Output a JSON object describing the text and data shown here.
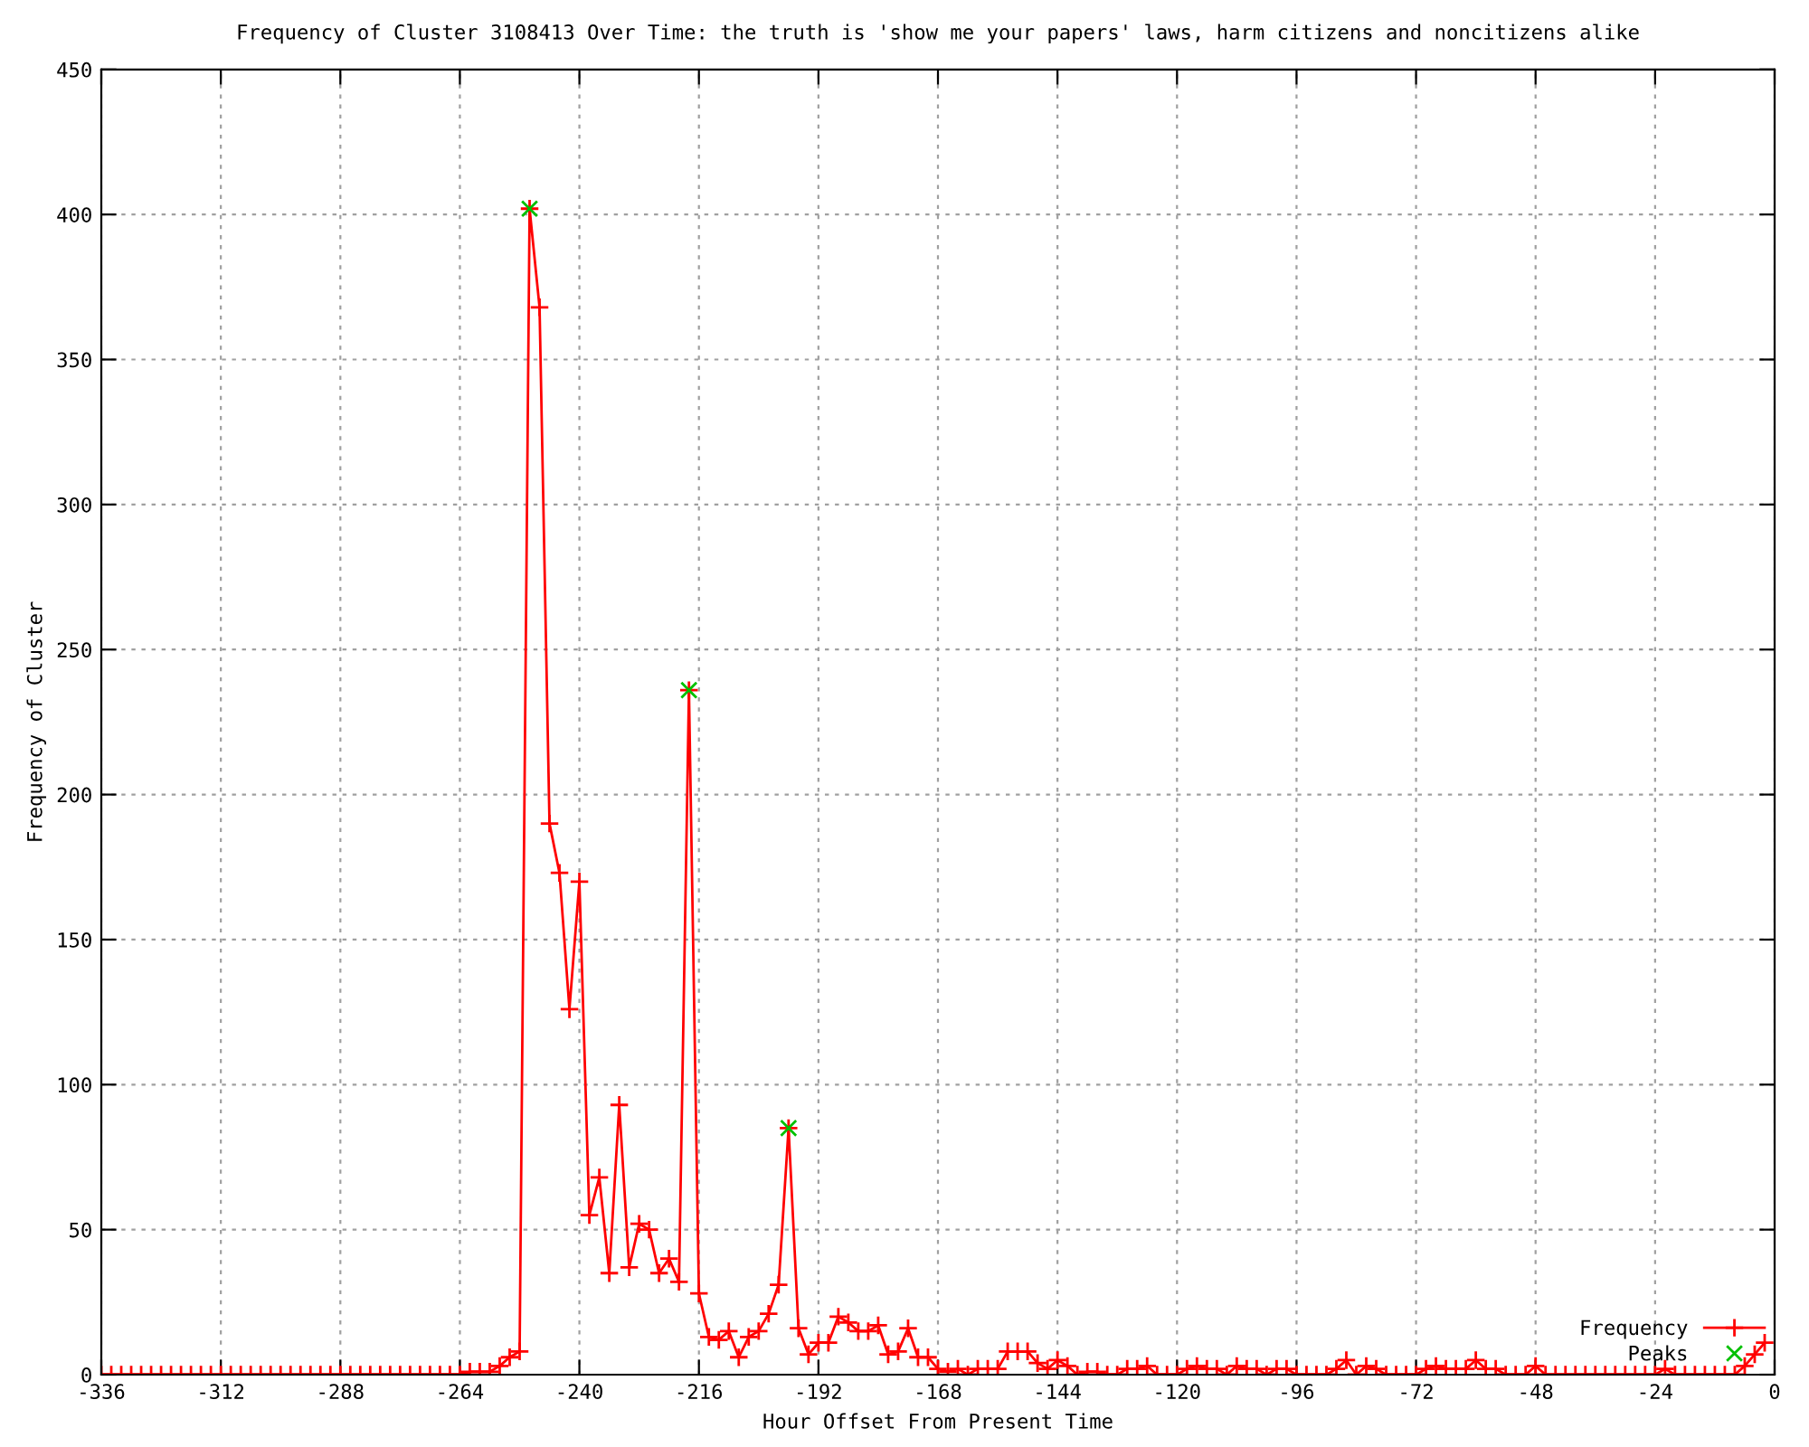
{
  "chart_data": {
    "type": "line",
    "title": "Frequency of Cluster 3108413 Over Time: the truth is 'show me your papers' laws, harm citizens and noncitizens alike",
    "xlabel": "Hour Offset From Present Time",
    "ylabel": "Frequency of Cluster",
    "xlim": [
      -336,
      0
    ],
    "ylim": [
      0,
      450
    ],
    "xticks": [
      -336,
      -312,
      -288,
      -264,
      -240,
      -216,
      -192,
      -168,
      -144,
      -120,
      -96,
      -72,
      -48,
      -24,
      0
    ],
    "yticks": [
      0,
      50,
      100,
      150,
      200,
      250,
      300,
      350,
      400,
      450
    ],
    "grid": true,
    "legend": "bottom right",
    "line_style": "solid",
    "series": [
      {
        "name": "Frequency",
        "color": "#ff0000",
        "marker": "cross",
        "x": [
          -336,
          -334,
          -332,
          -330,
          -328,
          -326,
          -324,
          -322,
          -320,
          -318,
          -316,
          -314,
          -312,
          -310,
          -308,
          -306,
          -304,
          -302,
          -300,
          -298,
          -296,
          -294,
          -292,
          -290,
          -288,
          -286,
          -284,
          -282,
          -280,
          -278,
          -276,
          -274,
          -272,
          -270,
          -268,
          -266,
          -264,
          -262,
          -260,
          -258,
          -256,
          -254,
          -252,
          -250,
          -248,
          -246,
          -244,
          -242,
          -240,
          -238,
          -236,
          -234,
          -232,
          -230,
          -228,
          -226,
          -224,
          -222,
          -220,
          -218,
          -216,
          -214,
          -212,
          -210,
          -208,
          -206,
          -204,
          -202,
          -200,
          -198,
          -196,
          -194,
          -192,
          -190,
          -188,
          -186,
          -184,
          -182,
          -180,
          -178,
          -176,
          -174,
          -172,
          -170,
          -168,
          -166,
          -164,
          -162,
          -160,
          -158,
          -156,
          -154,
          -152,
          -150,
          -148,
          -146,
          -144,
          -142,
          -140,
          -138,
          -136,
          -134,
          -132,
          -130,
          -128,
          -126,
          -124,
          -122,
          -120,
          -118,
          -116,
          -114,
          -112,
          -110,
          -108,
          -106,
          -104,
          -102,
          -100,
          -98,
          -96,
          -94,
          -92,
          -90,
          -88,
          -86,
          -84,
          -82,
          -80,
          -78,
          -76,
          -74,
          -72,
          -70,
          -68,
          -66,
          -64,
          -62,
          -60,
          -58,
          -56,
          -54,
          -52,
          -50,
          -48,
          -46,
          -44,
          -42,
          -40,
          -38,
          -36,
          -34,
          -32,
          -30,
          -28,
          -26,
          -24,
          -22,
          -20,
          -18,
          -16,
          -14,
          -12,
          -10,
          -8,
          -6,
          -4,
          -2
        ],
        "values": [
          0,
          0,
          0,
          0,
          0,
          0,
          0,
          0,
          0,
          0,
          0,
          0,
          0,
          0,
          0,
          0,
          0,
          0,
          0,
          0,
          0,
          0,
          0,
          0,
          0,
          0,
          0,
          0,
          0,
          0,
          0,
          0,
          0,
          0,
          0,
          0,
          0,
          1,
          1,
          1,
          3,
          6,
          8,
          402,
          368,
          190,
          173,
          126,
          170,
          55,
          68,
          35,
          93,
          37,
          52,
          50,
          35,
          40,
          32,
          236,
          28,
          13,
          12,
          15,
          6,
          13,
          15,
          21,
          31,
          85,
          16,
          7,
          11,
          11,
          20,
          18,
          15,
          15,
          17,
          7,
          8,
          16,
          6,
          6,
          2,
          1,
          2,
          0,
          2,
          2,
          2,
          8,
          8,
          8,
          4,
          2,
          5,
          3,
          0,
          1,
          1,
          0,
          0,
          2,
          2,
          3,
          0,
          0,
          0,
          2,
          3,
          2,
          2,
          0,
          3,
          2,
          2,
          0,
          2,
          2,
          0,
          0,
          0,
          0,
          2,
          5,
          0,
          3,
          2,
          0,
          0,
          0,
          0,
          2,
          3,
          2,
          2,
          2,
          5,
          2,
          2,
          0,
          0,
          0,
          3,
          0,
          0,
          0,
          0,
          0,
          0,
          0,
          0,
          0,
          0,
          0,
          0,
          2,
          0,
          0,
          0,
          0,
          0,
          0,
          0,
          3,
          7,
          11
        ]
      },
      {
        "name": "Peaks",
        "type": "scatter",
        "color": "#00c000",
        "marker": "x",
        "x": [
          -250,
          -218,
          -198
        ],
        "values": [
          402,
          236,
          85
        ]
      }
    ]
  }
}
